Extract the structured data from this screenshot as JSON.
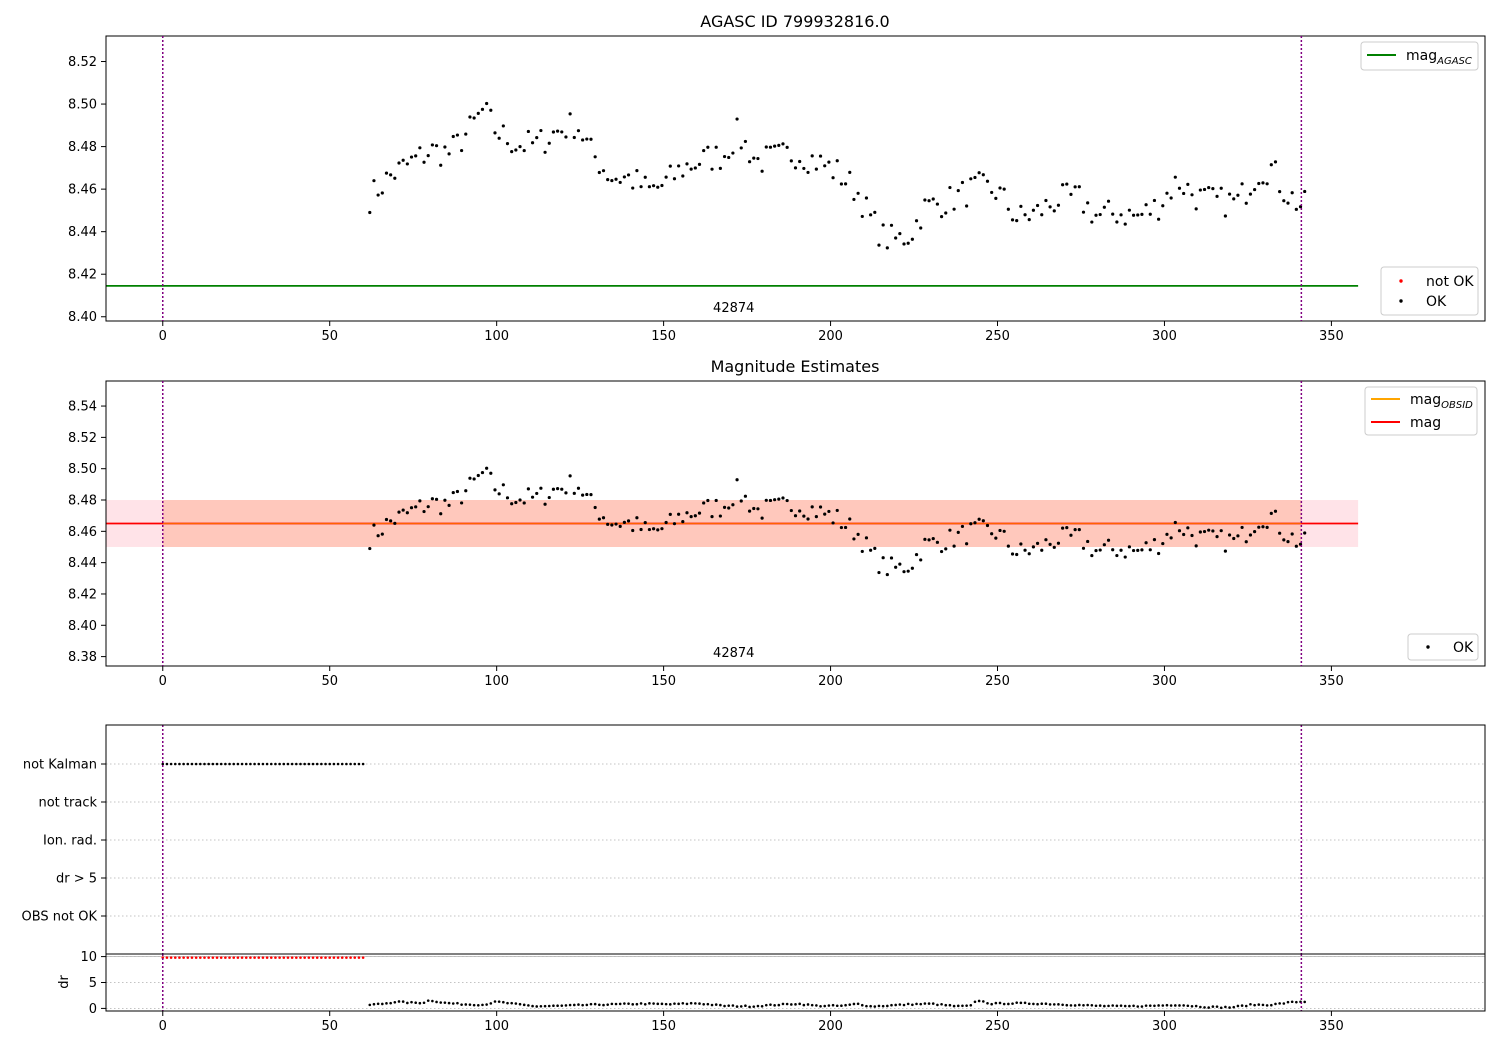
{
  "chart_data": [
    {
      "type": "scatter",
      "title": "AGASC ID 799932816.0",
      "xlabel": "",
      "ylabel": "",
      "xlim": [
        -17,
        396
      ],
      "ylim": [
        8.398,
        8.532
      ],
      "x_ticks": [
        0,
        50,
        100,
        150,
        200,
        250,
        300,
        350
      ],
      "y_ticks": [
        8.4,
        8.42,
        8.44,
        8.46,
        8.48,
        8.5,
        8.52
      ],
      "x_tick_labels": [
        "0",
        "50",
        "100",
        "150",
        "200",
        "250",
        "300",
        "350"
      ],
      "y_tick_labels": [
        "8.40",
        "8.42",
        "8.44",
        "8.46",
        "8.48",
        "8.50",
        "8.52"
      ],
      "vlines": {
        "x": [
          0,
          341
        ],
        "color": "#800080",
        "style": "dotted"
      },
      "hline": {
        "name_main": "mag",
        "name_sub": "AGASC",
        "y": 8.4145,
        "x_range": [
          -17,
          358
        ],
        "color": "#008000"
      },
      "obsid_label": {
        "text": "42874",
        "x": 171
      },
      "series_spec": {
        "name": "OK",
        "color": "#000000",
        "x_range": [
          62,
          342
        ],
        "step": 1.25
      },
      "series_not_ok": {
        "name": "not OK",
        "color": "#ff0000",
        "x": [],
        "y": []
      },
      "mag_curve": {
        "x": [
          62,
          68,
          74,
          80,
          86,
          92,
          96,
          100,
          106,
          112,
          118,
          124,
          128,
          134,
          140,
          146,
          150,
          156,
          162,
          168,
          172,
          178,
          184,
          190,
          196,
          202,
          208,
          212,
          216,
          220,
          224,
          228,
          236,
          244,
          250,
          256,
          262,
          268,
          274,
          280,
          286,
          292,
          298,
          304,
          310,
          316,
          322,
          328,
          332,
          336,
          341
        ],
        "y": [
          8.456,
          8.466,
          8.472,
          8.478,
          8.477,
          8.488,
          8.497,
          8.487,
          8.481,
          8.481,
          8.487,
          8.491,
          8.478,
          8.466,
          8.465,
          8.459,
          8.462,
          8.47,
          8.474,
          8.476,
          8.486,
          8.473,
          8.475,
          8.477,
          8.473,
          8.468,
          8.459,
          8.446,
          8.437,
          8.436,
          8.439,
          8.451,
          8.455,
          8.461,
          8.459,
          8.446,
          8.449,
          8.455,
          8.456,
          8.447,
          8.449,
          8.447,
          8.452,
          8.464,
          8.456,
          8.454,
          8.454,
          8.468,
          8.47,
          8.459,
          8.452
        ]
      },
      "legends": [
        {
          "position": "top-right",
          "entries": [
            {
              "kind": "line",
              "color": "#008000",
              "name_main": "mag",
              "name_sub": "AGASC"
            }
          ]
        },
        {
          "position": "lower-right",
          "entries": [
            {
              "kind": "dot",
              "color": "#ff0000",
              "name": "not OK"
            },
            {
              "kind": "dot",
              "color": "#000000",
              "name": "OK"
            }
          ]
        }
      ]
    },
    {
      "type": "scatter",
      "title": "Magnitude Estimates",
      "xlabel": "",
      "ylabel": "",
      "xlim": [
        -17,
        396
      ],
      "ylim": [
        8.374,
        8.556
      ],
      "x_ticks": [
        0,
        50,
        100,
        150,
        200,
        250,
        300,
        350
      ],
      "y_ticks": [
        8.38,
        8.4,
        8.42,
        8.44,
        8.46,
        8.48,
        8.5,
        8.52,
        8.54
      ],
      "x_tick_labels": [
        "0",
        "50",
        "100",
        "150",
        "200",
        "250",
        "300",
        "350"
      ],
      "y_tick_labels": [
        "8.38",
        "8.40",
        "8.42",
        "8.44",
        "8.46",
        "8.48",
        "8.50",
        "8.52",
        "8.54"
      ],
      "vlines": {
        "x": [
          0,
          341
        ],
        "color": "#800080",
        "style": "dotted"
      },
      "mag_line": {
        "name": "mag",
        "y": 8.465,
        "color": "#ff0000",
        "x_range": [
          -17,
          358
        ]
      },
      "mag_obsid": {
        "name_main": "mag",
        "name_sub": "OBSID",
        "y": 8.465,
        "color": "#ffa500",
        "x_range": [
          0,
          341
        ]
      },
      "band_pink": {
        "y_range": [
          8.45,
          8.48
        ],
        "x_range": [
          -17,
          358
        ],
        "color": "#ffc0cb"
      },
      "band_orange": {
        "y_range": [
          8.45,
          8.48
        ],
        "x_range": [
          0,
          341
        ],
        "color": "#ffa07a"
      },
      "obsid_label": {
        "text": "42874",
        "x": 171
      },
      "legends": [
        {
          "position": "top-right",
          "entries": [
            {
              "kind": "line",
              "color": "#ffa500",
              "name_main": "mag",
              "name_sub": "OBSID"
            },
            {
              "kind": "line",
              "color": "#ff0000",
              "name": "mag"
            }
          ]
        },
        {
          "position": "lower-right",
          "entries": [
            {
              "kind": "dot",
              "color": "#000000",
              "name": "OK"
            }
          ]
        }
      ]
    },
    {
      "type": "scatter",
      "title": "",
      "xlabel": "",
      "ylabel": "",
      "xlim": [
        -17,
        396
      ],
      "categories": [
        "not Kalman",
        "not track",
        "Ion. rad.",
        "dr > 5",
        "OBS not OK"
      ],
      "flags": [
        {
          "category": "not Kalman",
          "x_range": [
            0,
            61
          ],
          "step": 1.25,
          "color": "#000000"
        }
      ],
      "grid": true,
      "vlines": {
        "x": [
          0,
          341
        ],
        "color": "#800080",
        "style": "dotted"
      }
    },
    {
      "type": "scatter",
      "title": "",
      "xlabel": "",
      "ylabel": "dr",
      "xlim": [
        -17,
        396
      ],
      "ylim": [
        -0.5,
        10.5
      ],
      "x_ticks": [
        0,
        50,
        100,
        150,
        200,
        250,
        300,
        350
      ],
      "y_ticks": [
        0,
        5,
        10
      ],
      "x_tick_labels": [
        "0",
        "50",
        "100",
        "150",
        "200",
        "250",
        "300",
        "350"
      ],
      "y_tick_labels": [
        "0",
        "5",
        "10"
      ],
      "hline_at_max": 10,
      "series_capped": {
        "x_range": [
          0,
          61
        ],
        "step": 1.25,
        "y": 9.8,
        "color": "#ff0000"
      },
      "series_dr": {
        "x_range": [
          62,
          342
        ],
        "step": 1.25,
        "x": [
          62,
          66,
          70,
          74,
          78,
          80,
          84,
          90,
          96,
          100,
          106,
          112,
          120,
          128,
          136,
          144,
          152,
          160,
          168,
          176,
          184,
          190,
          196,
          204,
          208,
          212,
          216,
          224,
          230,
          238,
          242,
          244,
          248,
          256,
          264,
          272,
          280,
          288,
          296,
          304,
          312,
          320,
          326,
          332,
          338,
          341
        ],
        "y": [
          0.7,
          0.9,
          1.3,
          1.1,
          1.1,
          1.6,
          1.1,
          0.8,
          0.7,
          1.3,
          0.8,
          0.4,
          0.5,
          0.7,
          0.8,
          0.9,
          0.8,
          1.0,
          0.5,
          0.4,
          0.7,
          0.9,
          0.5,
          0.5,
          0.9,
          0.4,
          0.5,
          0.8,
          0.9,
          0.4,
          0.5,
          1.6,
          0.9,
          1.0,
          0.9,
          0.7,
          0.5,
          0.4,
          0.5,
          0.7,
          0.3,
          0.2,
          0.7,
          0.7,
          1.2,
          1.3
        ]
      },
      "grid": true,
      "vlines": {
        "x": [
          0,
          341
        ],
        "color": "#800080",
        "style": "dotted"
      }
    }
  ]
}
